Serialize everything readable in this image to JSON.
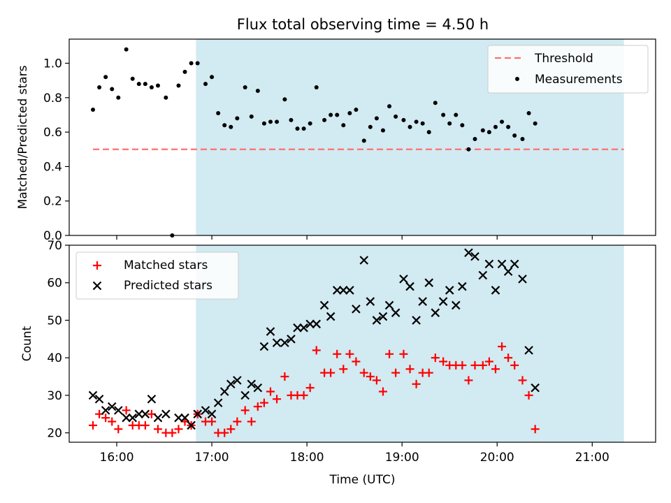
{
  "title": "Flux total observing time = 4.50 h",
  "colors": {
    "span": "#add8e6",
    "threshold": "#ff7070",
    "measurements": "#000000",
    "matched": "#ff0000",
    "predicted": "#000000"
  },
  "chart_data": [
    {
      "type": "scatter",
      "panel": "top",
      "title": "Flux total observing time = 4.50 h",
      "xlabel": "",
      "ylabel": "Matched/Predicted stars",
      "xlim": [
        "15:30",
        "21:40"
      ],
      "ylim": [
        0,
        1.14
      ],
      "y_ticks": [
        "0.0",
        "0.2",
        "0.4",
        "0.6",
        "0.8",
        "1.0"
      ],
      "x_tick_labels_shown": false,
      "legend_position": "top-right",
      "shaded_span": {
        "start": "16:50",
        "end": "21:20"
      },
      "threshold": {
        "name": "Threshold",
        "value": 0.5,
        "from": "15:45",
        "to": "21:20",
        "style": "dashed"
      },
      "series": [
        {
          "name": "Measurements",
          "marker": "dot",
          "points": [
            [
              "15:45",
              0.73
            ],
            [
              "15:49",
              0.86
            ],
            [
              "15:53",
              0.92
            ],
            [
              "15:57",
              0.85
            ],
            [
              "16:01",
              0.8
            ],
            [
              "16:06",
              1.08
            ],
            [
              "16:10",
              0.91
            ],
            [
              "16:14",
              0.88
            ],
            [
              "16:18",
              0.88
            ],
            [
              "16:22",
              0.86
            ],
            [
              "16:26",
              0.87
            ],
            [
              "16:31",
              0.8
            ],
            [
              "16:35",
              0.0
            ],
            [
              "16:39",
              0.87
            ],
            [
              "16:43",
              0.95
            ],
            [
              "16:47",
              1.0
            ],
            [
              "16:51",
              1.0
            ],
            [
              "16:56",
              0.88
            ],
            [
              "17:00",
              0.92
            ],
            [
              "17:04",
              0.71
            ],
            [
              "17:08",
              0.64
            ],
            [
              "17:12",
              0.63
            ],
            [
              "17:16",
              0.68
            ],
            [
              "17:21",
              0.86
            ],
            [
              "17:25",
              0.69
            ],
            [
              "17:29",
              0.84
            ],
            [
              "17:33",
              0.65
            ],
            [
              "17:37",
              0.66
            ],
            [
              "17:41",
              0.66
            ],
            [
              "17:46",
              0.79
            ],
            [
              "17:50",
              0.67
            ],
            [
              "17:54",
              0.62
            ],
            [
              "17:58",
              0.62
            ],
            [
              "18:02",
              0.65
            ],
            [
              "18:06",
              0.86
            ],
            [
              "18:11",
              0.67
            ],
            [
              "18:15",
              0.7
            ],
            [
              "18:19",
              0.7
            ],
            [
              "18:23",
              0.64
            ],
            [
              "18:27",
              0.71
            ],
            [
              "18:31",
              0.73
            ],
            [
              "18:36",
              0.55
            ],
            [
              "18:40",
              0.63
            ],
            [
              "18:44",
              0.68
            ],
            [
              "18:48",
              0.61
            ],
            [
              "18:52",
              0.75
            ],
            [
              "18:56",
              0.69
            ],
            [
              "19:01",
              0.67
            ],
            [
              "19:05",
              0.63
            ],
            [
              "19:09",
              0.66
            ],
            [
              "19:13",
              0.65
            ],
            [
              "19:17",
              0.6
            ],
            [
              "19:21",
              0.77
            ],
            [
              "19:26",
              0.7
            ],
            [
              "19:30",
              0.65
            ],
            [
              "19:34",
              0.7
            ],
            [
              "19:38",
              0.64
            ],
            [
              "19:42",
              0.5
            ],
            [
              "19:46",
              0.56
            ],
            [
              "19:51",
              0.61
            ],
            [
              "19:55",
              0.6
            ],
            [
              "19:59",
              0.63
            ],
            [
              "20:03",
              0.66
            ],
            [
              "20:07",
              0.63
            ],
            [
              "20:11",
              0.58
            ],
            [
              "20:16",
              0.56
            ],
            [
              "20:20",
              0.71
            ],
            [
              "20:24",
              0.65
            ]
          ]
        }
      ]
    },
    {
      "type": "scatter",
      "panel": "bottom",
      "xlabel": "Time (UTC)",
      "ylabel": "Count",
      "xlim": [
        "15:30",
        "21:40"
      ],
      "ylim": [
        17.5,
        70
      ],
      "x_ticks": [
        "16:00",
        "17:00",
        "18:00",
        "19:00",
        "20:00",
        "21:00"
      ],
      "y_ticks": [
        "20",
        "30",
        "40",
        "50",
        "60",
        "70"
      ],
      "legend_position": "top-left",
      "shaded_span": {
        "start": "16:50",
        "end": "21:20"
      },
      "series": [
        {
          "name": "Matched stars",
          "marker": "plus",
          "points": [
            [
              "15:45",
              22
            ],
            [
              "15:49",
              25
            ],
            [
              "15:53",
              24
            ],
            [
              "15:57",
              23
            ],
            [
              "16:01",
              21
            ],
            [
              "16:06",
              26
            ],
            [
              "16:10",
              22
            ],
            [
              "16:14",
              22
            ],
            [
              "16:18",
              22
            ],
            [
              "16:22",
              25
            ],
            [
              "16:26",
              21
            ],
            [
              "16:31",
              20
            ],
            [
              "16:35",
              20
            ],
            [
              "16:39",
              21
            ],
            [
              "16:43",
              23
            ],
            [
              "16:47",
              22
            ],
            [
              "16:51",
              25
            ],
            [
              "16:56",
              23
            ],
            [
              "17:00",
              23
            ],
            [
              "17:04",
              20
            ],
            [
              "17:08",
              20
            ],
            [
              "17:12",
              21
            ],
            [
              "17:16",
              23
            ],
            [
              "17:21",
              26
            ],
            [
              "17:25",
              23
            ],
            [
              "17:29",
              27
            ],
            [
              "17:33",
              28
            ],
            [
              "17:37",
              31
            ],
            [
              "17:41",
              29
            ],
            [
              "17:46",
              35
            ],
            [
              "17:50",
              30
            ],
            [
              "17:54",
              30
            ],
            [
              "17:58",
              30
            ],
            [
              "18:02",
              32
            ],
            [
              "18:06",
              42
            ],
            [
              "18:11",
              36
            ],
            [
              "18:15",
              36
            ],
            [
              "18:19",
              41
            ],
            [
              "18:23",
              37
            ],
            [
              "18:27",
              41
            ],
            [
              "18:31",
              39
            ],
            [
              "18:36",
              36
            ],
            [
              "18:40",
              35
            ],
            [
              "18:44",
              34
            ],
            [
              "18:48",
              31
            ],
            [
              "18:52",
              41
            ],
            [
              "18:56",
              36
            ],
            [
              "19:01",
              41
            ],
            [
              "19:05",
              37
            ],
            [
              "19:09",
              33
            ],
            [
              "19:13",
              36
            ],
            [
              "19:17",
              36
            ],
            [
              "19:21",
              40
            ],
            [
              "19:26",
              39
            ],
            [
              "19:30",
              38
            ],
            [
              "19:34",
              38
            ],
            [
              "19:38",
              38
            ],
            [
              "19:42",
              34
            ],
            [
              "19:46",
              38
            ],
            [
              "19:51",
              38
            ],
            [
              "19:55",
              39
            ],
            [
              "19:59",
              37
            ],
            [
              "20:03",
              43
            ],
            [
              "20:07",
              40
            ],
            [
              "20:11",
              38
            ],
            [
              "20:16",
              34
            ],
            [
              "20:20",
              30
            ],
            [
              "20:24",
              21
            ]
          ]
        },
        {
          "name": "Predicted stars",
          "marker": "x",
          "points": [
            [
              "15:45",
              30
            ],
            [
              "15:49",
              29
            ],
            [
              "15:53",
              26
            ],
            [
              "15:57",
              27
            ],
            [
              "16:01",
              26
            ],
            [
              "16:06",
              24
            ],
            [
              "16:10",
              24
            ],
            [
              "16:14",
              25
            ],
            [
              "16:18",
              25
            ],
            [
              "16:22",
              29
            ],
            [
              "16:26",
              24
            ],
            [
              "16:31",
              25
            ],
            [
              "16:39",
              24
            ],
            [
              "16:43",
              24
            ],
            [
              "16:47",
              22
            ],
            [
              "16:51",
              25
            ],
            [
              "16:56",
              26
            ],
            [
              "17:00",
              25
            ],
            [
              "17:04",
              28
            ],
            [
              "17:08",
              31
            ],
            [
              "17:12",
              33
            ],
            [
              "17:16",
              34
            ],
            [
              "17:21",
              30
            ],
            [
              "17:25",
              33
            ],
            [
              "17:29",
              32
            ],
            [
              "17:33",
              43
            ],
            [
              "17:37",
              47
            ],
            [
              "17:41",
              44
            ],
            [
              "17:46",
              44
            ],
            [
              "17:50",
              45
            ],
            [
              "17:54",
              48
            ],
            [
              "17:58",
              48
            ],
            [
              "18:02",
              49
            ],
            [
              "18:06",
              49
            ],
            [
              "18:11",
              54
            ],
            [
              "18:15",
              51
            ],
            [
              "18:19",
              58
            ],
            [
              "18:23",
              58
            ],
            [
              "18:27",
              58
            ],
            [
              "18:31",
              53
            ],
            [
              "18:36",
              66
            ],
            [
              "18:40",
              55
            ],
            [
              "18:44",
              50
            ],
            [
              "18:48",
              51
            ],
            [
              "18:52",
              54
            ],
            [
              "18:56",
              52
            ],
            [
              "19:01",
              61
            ],
            [
              "19:05",
              59
            ],
            [
              "19:09",
              50
            ],
            [
              "19:13",
              55
            ],
            [
              "19:17",
              60
            ],
            [
              "19:21",
              52
            ],
            [
              "19:26",
              55
            ],
            [
              "19:30",
              58
            ],
            [
              "19:34",
              54
            ],
            [
              "19:38",
              59
            ],
            [
              "19:42",
              68
            ],
            [
              "19:46",
              67
            ],
            [
              "19:51",
              62
            ],
            [
              "19:55",
              65
            ],
            [
              "19:59",
              58
            ],
            [
              "20:03",
              65
            ],
            [
              "20:07",
              63
            ],
            [
              "20:11",
              65
            ],
            [
              "20:16",
              61
            ],
            [
              "20:20",
              42
            ],
            [
              "20:24",
              32
            ]
          ]
        }
      ]
    }
  ]
}
